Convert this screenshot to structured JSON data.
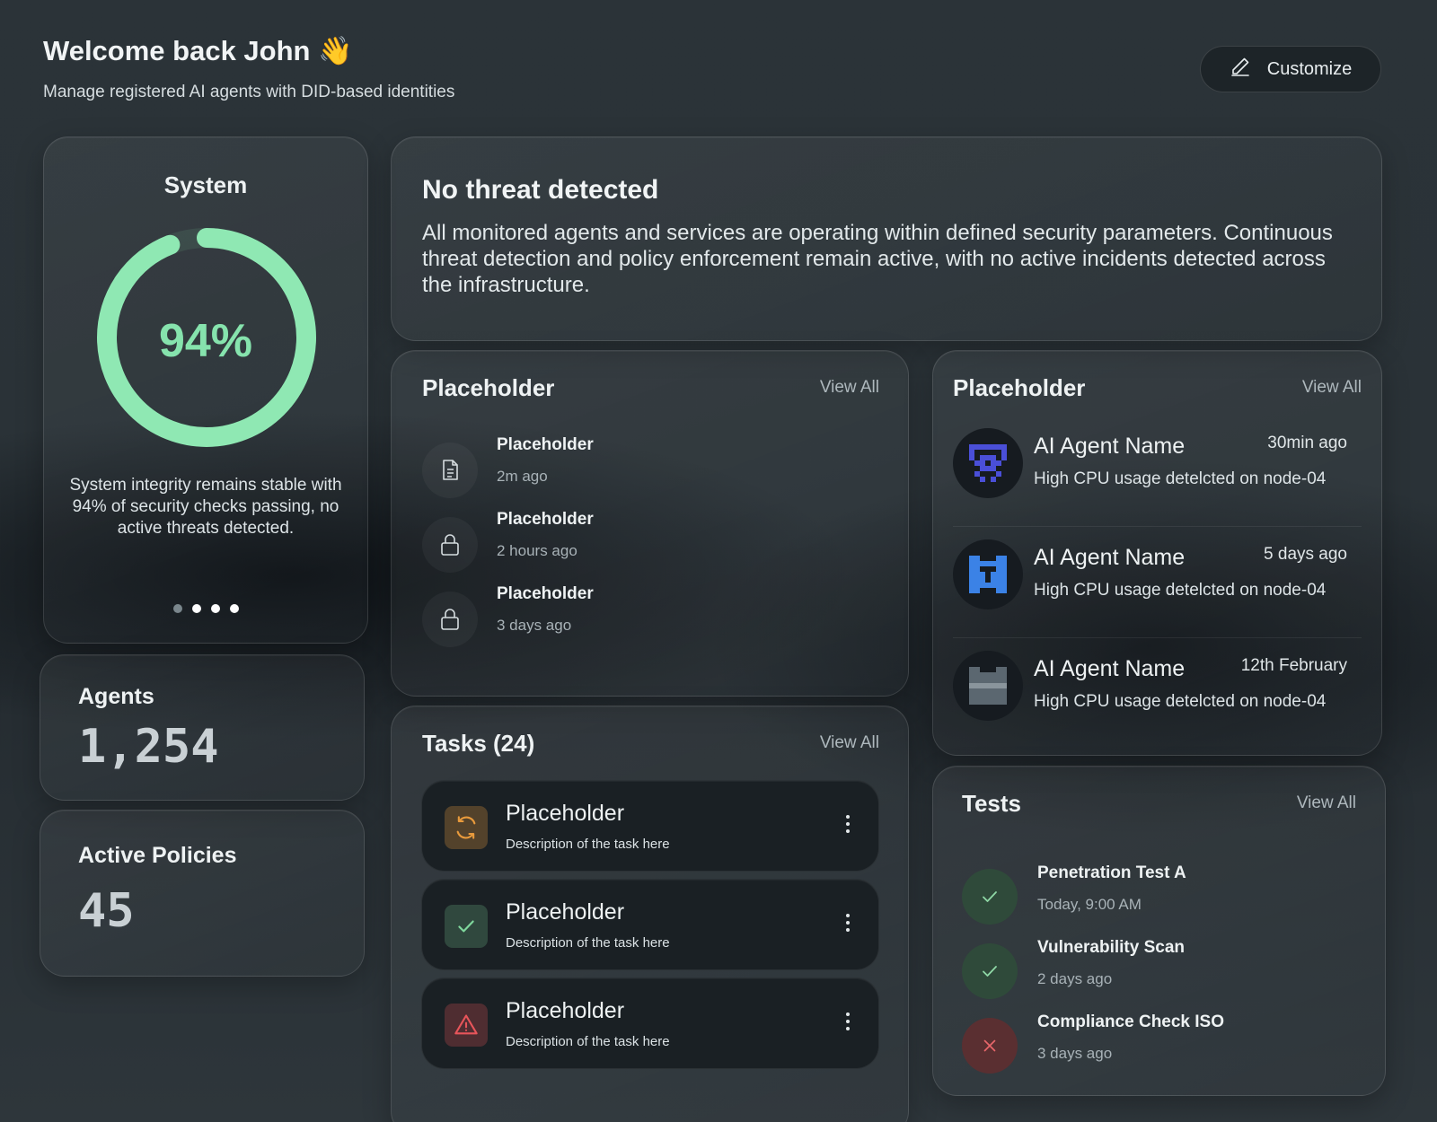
{
  "header": {
    "title": "Welcome back John 👋",
    "subtitle": "Manage registered AI agents with DID-based identities",
    "customize_label": "Customize"
  },
  "system": {
    "title": "System",
    "score_label": "94%",
    "score_fraction": 0.94,
    "ring_color": "#8fe8b3",
    "description": "System integrity remains stable with 94% of security checks passing, no active threats detected.",
    "carousel_pages": 4,
    "carousel_active_index": 0
  },
  "agents": {
    "label": "Agents",
    "value": "1,254"
  },
  "policies": {
    "label": "Active Policies",
    "value": "45"
  },
  "threat": {
    "title": "No threat detected",
    "description": "All monitored agents and services are operating within defined security parameters. Continuous threat detection and policy enforcement remain active, with no active incidents detected across the infrastructure."
  },
  "activity": {
    "title": "Placeholder",
    "view_all": "View All",
    "items": [
      {
        "icon": "document-icon",
        "name": "Placeholder",
        "time": "2m ago"
      },
      {
        "icon": "lock-icon",
        "name": "Placeholder",
        "time": "2 hours ago"
      },
      {
        "icon": "lock-icon",
        "name": "Placeholder",
        "time": "3 days ago"
      }
    ]
  },
  "agent_alerts": {
    "title": "Placeholder",
    "view_all": "View All",
    "items": [
      {
        "name": "AI Agent Name",
        "time": "30min ago",
        "desc": "High CPU usage detelcted on node-04",
        "avatar_color": "#4a4fd8"
      },
      {
        "name": "AI Agent Name",
        "time": "5 days ago",
        "desc": "High CPU usage detelcted on node-04",
        "avatar_color": "#3b82e6"
      },
      {
        "name": "AI Agent Name",
        "time": "12th February",
        "desc": "High CPU usage detelcted on node-04",
        "avatar_color": "#5b6770"
      }
    ]
  },
  "tasks": {
    "title": "Tasks (24)",
    "view_all": "View All",
    "items": [
      {
        "icon": "refresh-icon",
        "status": "in-progress",
        "name": "Placeholder",
        "desc": "Description of the task here",
        "color": "#e89a3c"
      },
      {
        "icon": "check-icon",
        "status": "done",
        "name": "Placeholder",
        "desc": "Description of the task here",
        "color": "#7fd79c"
      },
      {
        "icon": "warning-icon",
        "status": "error",
        "name": "Placeholder",
        "desc": "Description of the task here",
        "color": "#e8555a"
      }
    ]
  },
  "tests": {
    "title": "Tests",
    "view_all": "View All",
    "items": [
      {
        "icon": "check-icon",
        "status": "pass",
        "name": "Penetration Test A",
        "time": "Today, 9:00 AM"
      },
      {
        "icon": "check-icon",
        "status": "pass",
        "name": "Vulnerability Scan",
        "time": "2 days ago"
      },
      {
        "icon": "close-icon",
        "status": "fail",
        "name": "Compliance Check ISO",
        "time": "3 days ago"
      }
    ]
  }
}
